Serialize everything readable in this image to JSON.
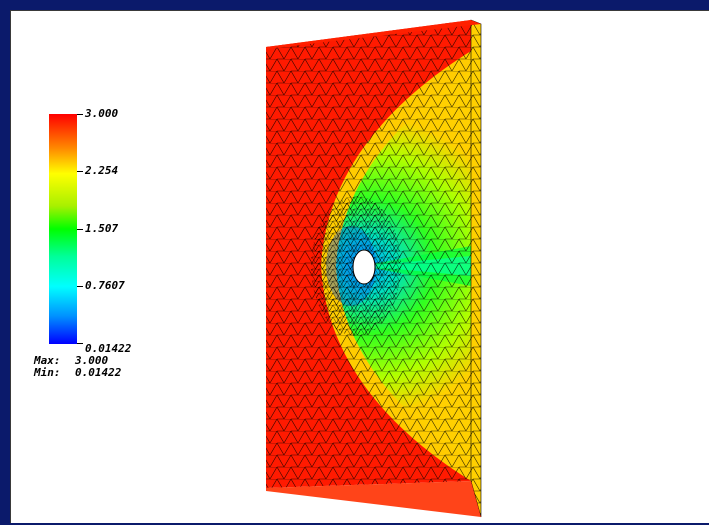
{
  "legend": {
    "ticks": [
      "3.000",
      "2.254",
      "1.507",
      "0.7607",
      "0.01422"
    ],
    "max_label": "Max:",
    "max_value": "3.000",
    "min_label": "Min:",
    "min_value": "0.01422"
  },
  "colors": {
    "background_frame": "#0b1a6b",
    "viewport": "#ffffff",
    "colormap": [
      "#0000ff",
      "#00ffff",
      "#00ff00",
      "#ffff00",
      "#ff0000"
    ]
  }
}
